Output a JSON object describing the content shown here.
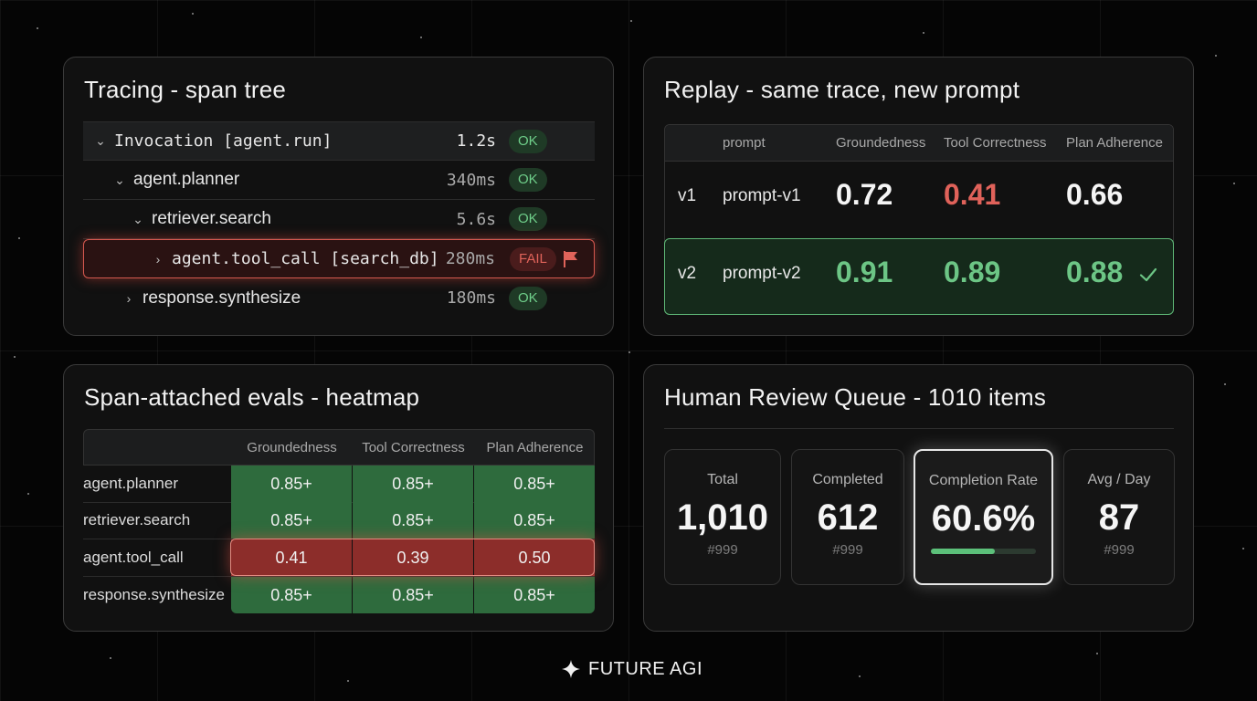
{
  "tracing": {
    "title": "Tracing - span tree",
    "rows": [
      {
        "chevron": "⌄",
        "name": "Invocation [agent.run]",
        "duration": "1.2s",
        "status": "OK"
      },
      {
        "chevron": "⌄",
        "name": "agent.planner",
        "duration": "340ms",
        "status": "OK"
      },
      {
        "chevron": "⌄",
        "name": "retriever.search",
        "duration": "5.6s",
        "status": "OK"
      },
      {
        "chevron": "›",
        "name": "agent.tool_call [search_db]",
        "duration": "280ms",
        "status": "FAIL",
        "flag_icon": "flag-icon"
      },
      {
        "chevron": "›",
        "name": "response.synthesize",
        "duration": "180ms",
        "status": "OK"
      }
    ]
  },
  "replay": {
    "title": "Replay - same trace, new prompt",
    "headers": [
      "prompt",
      "Groundedness",
      "Tool Correctness",
      "Plan Adherence"
    ],
    "rows": [
      {
        "version": "v1",
        "prompt": "prompt-v1",
        "groundedness": "0.72",
        "tool_correctness": "0.41",
        "plan_adherence": "0.66"
      },
      {
        "version": "v2",
        "prompt": "prompt-v2",
        "groundedness": "0.91",
        "tool_correctness": "0.89",
        "plan_adherence": "0.88",
        "check_icon": "check-icon"
      }
    ]
  },
  "heatmap": {
    "title": "Span-attached evals - heatmap",
    "headers": [
      "Groundedness",
      "Tool Correctness",
      "Plan Adherence"
    ],
    "rows": [
      {
        "span": "agent.planner",
        "values": [
          "0.85+",
          "0.85+",
          "0.85+"
        ]
      },
      {
        "span": "retriever.search",
        "values": [
          "0.85+",
          "0.85+",
          "0.85+"
        ]
      },
      {
        "span": "agent.tool_call",
        "values": [
          "0.41",
          "0.39",
          "0.50"
        ]
      },
      {
        "span": "response.synthesize",
        "values": [
          "0.85+",
          "0.85+",
          "0.85+"
        ]
      }
    ],
    "colors": {
      "good": "#2e6b3d",
      "bad": "#8c2d2a"
    }
  },
  "review": {
    "title": "Human Review Queue - 1010 items",
    "cards": [
      {
        "label": "Total",
        "value": "1,010",
        "sub": "#999"
      },
      {
        "label": "Completed",
        "value": "612",
        "sub": "#999"
      },
      {
        "label": "Completion Rate",
        "value": "60.6%",
        "progress": 0.606
      },
      {
        "label": "Avg / Day",
        "value": "87",
        "sub": "#999"
      }
    ]
  },
  "footer": {
    "brand": "FUTURE AGI",
    "logo_icon": "sparkle-logo-icon"
  },
  "colors": {
    "ok": "#6fcf8a",
    "fail": "#e0635a",
    "accent_green": "#6cc585",
    "accent_red": "#e0625a"
  }
}
